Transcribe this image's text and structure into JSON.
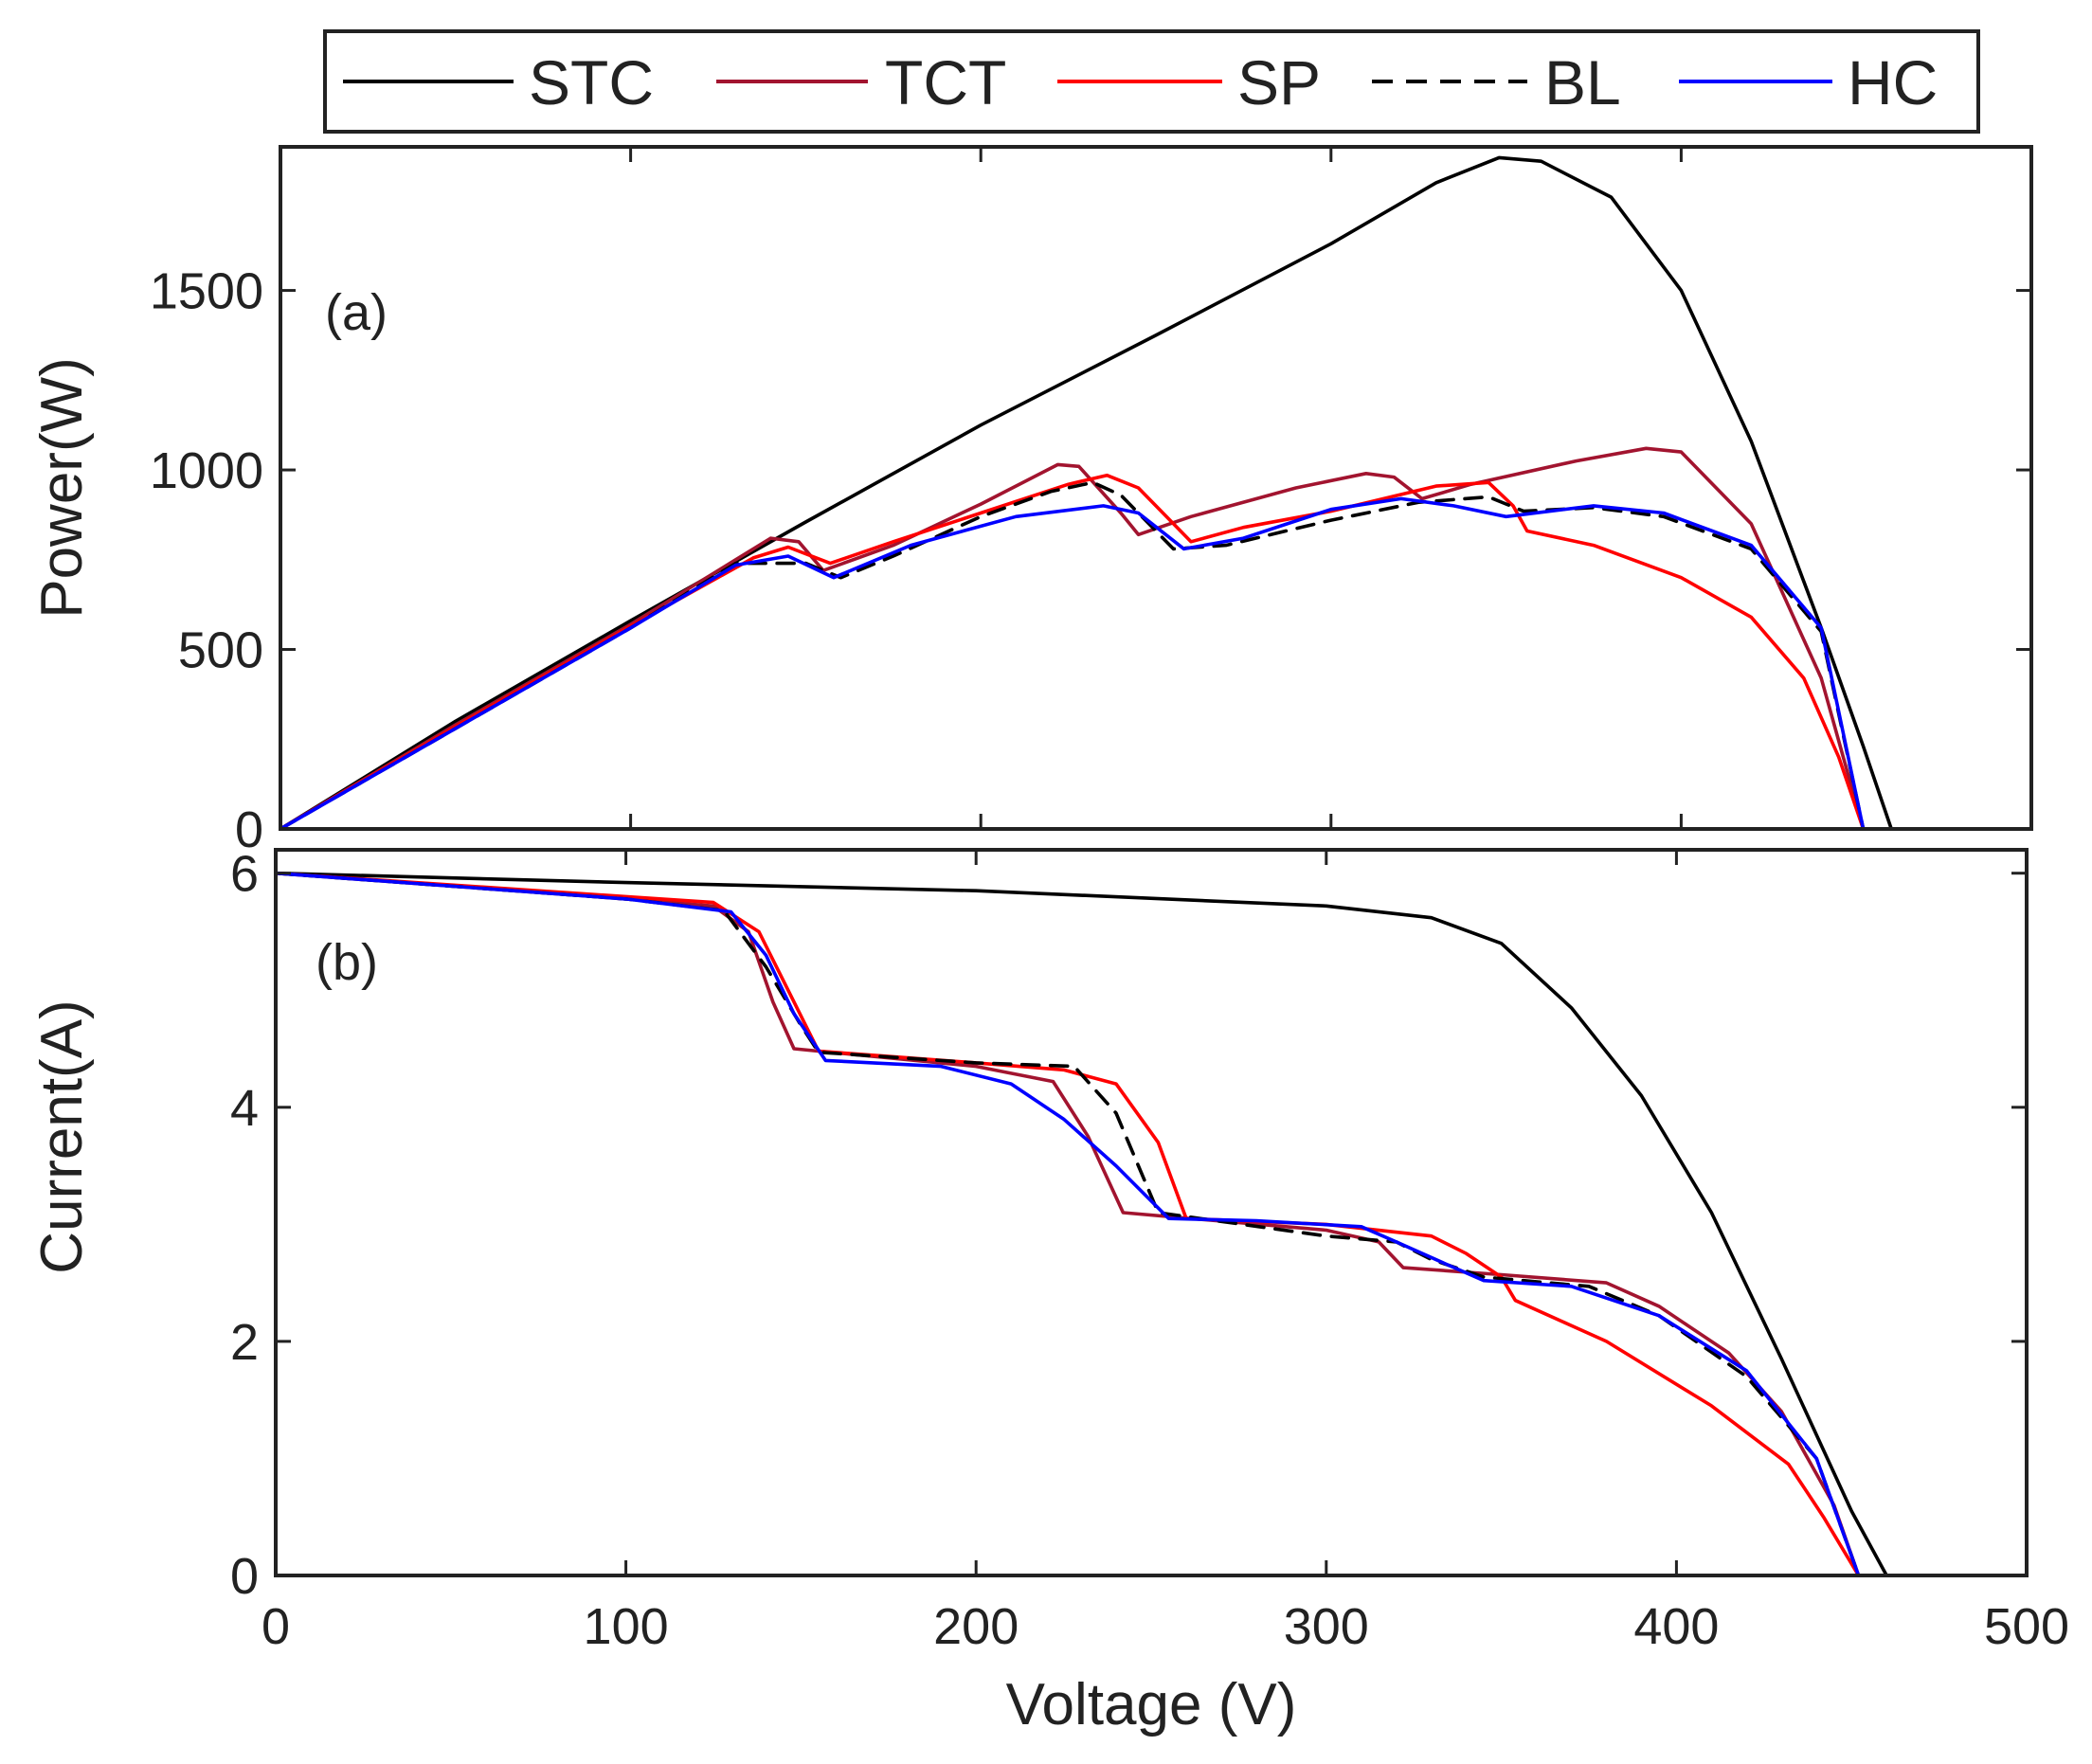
{
  "chart_data": [
    {
      "id": "power",
      "type": "line",
      "panel_label": "(a)",
      "xlabel": "",
      "ylabel": "Power(W)",
      "xlim": [
        0,
        500
      ],
      "ylim": [
        0,
        1900
      ],
      "xticks": [],
      "yticks": [
        0,
        500,
        1000,
        1500
      ],
      "series": [
        {
          "name": "STC",
          "color": "#000000",
          "dash": "solid",
          "points": [
            [
              0,
              0
            ],
            [
              50,
              300
            ],
            [
              100,
              580
            ],
            [
              150,
              855
            ],
            [
              200,
              1125
            ],
            [
              250,
              1375
            ],
            [
              300,
              1630
            ],
            [
              330,
              1800
            ],
            [
              348,
              1870
            ],
            [
              360,
              1860
            ],
            [
              380,
              1760
            ],
            [
              400,
              1500
            ],
            [
              420,
              1080
            ],
            [
              440,
              560
            ],
            [
              452,
              230
            ],
            [
              460,
              0
            ]
          ]
        },
        {
          "name": "TCT",
          "color": "#A2142F",
          "dash": "solid",
          "points": [
            [
              0,
              0
            ],
            [
              50,
              290
            ],
            [
              100,
              570
            ],
            [
              130,
              750
            ],
            [
              140,
              810
            ],
            [
              148,
              800
            ],
            [
              155,
              720
            ],
            [
              175,
              790
            ],
            [
              200,
              905
            ],
            [
              222,
              1015
            ],
            [
              228,
              1010
            ],
            [
              240,
              880
            ],
            [
              245,
              820
            ],
            [
              260,
              870
            ],
            [
              290,
              950
            ],
            [
              310,
              990
            ],
            [
              318,
              980
            ],
            [
              326,
              920
            ],
            [
              340,
              960
            ],
            [
              370,
              1025
            ],
            [
              390,
              1060
            ],
            [
              400,
              1050
            ],
            [
              420,
              850
            ],
            [
              440,
              420
            ],
            [
              452,
              0
            ]
          ]
        },
        {
          "name": "SP",
          "color": "#FF0000",
          "dash": "solid",
          "points": [
            [
              0,
              0
            ],
            [
              50,
              285
            ],
            [
              100,
              565
            ],
            [
              135,
              755
            ],
            [
              145,
              785
            ],
            [
              157,
              740
            ],
            [
              175,
              800
            ],
            [
              200,
              880
            ],
            [
              225,
              960
            ],
            [
              236,
              985
            ],
            [
              245,
              950
            ],
            [
              260,
              800
            ],
            [
              275,
              840
            ],
            [
              300,
              885
            ],
            [
              330,
              955
            ],
            [
              345,
              965
            ],
            [
              352,
              900
            ],
            [
              356,
              830
            ],
            [
              375,
              790
            ],
            [
              400,
              700
            ],
            [
              420,
              590
            ],
            [
              435,
              420
            ],
            [
              445,
              200
            ],
            [
              452,
              0
            ]
          ]
        },
        {
          "name": "BL",
          "color": "#000000",
          "dash": "dashed",
          "points": [
            [
              0,
              0
            ],
            [
              50,
              280
            ],
            [
              100,
              560
            ],
            [
              130,
              740
            ],
            [
              150,
              740
            ],
            [
              160,
              700
            ],
            [
              175,
              760
            ],
            [
              200,
              870
            ],
            [
              220,
              940
            ],
            [
              232,
              965
            ],
            [
              240,
              930
            ],
            [
              255,
              780
            ],
            [
              270,
              790
            ],
            [
              300,
              860
            ],
            [
              325,
              910
            ],
            [
              345,
              925
            ],
            [
              355,
              885
            ],
            [
              375,
              895
            ],
            [
              395,
              870
            ],
            [
              420,
              780
            ],
            [
              440,
              550
            ],
            [
              452,
              0
            ]
          ]
        },
        {
          "name": "HC",
          "color": "#0000FF",
          "dash": "solid",
          "points": [
            [
              0,
              0
            ],
            [
              50,
              280
            ],
            [
              100,
              560
            ],
            [
              130,
              735
            ],
            [
              145,
              760
            ],
            [
              158,
              700
            ],
            [
              180,
              790
            ],
            [
              210,
              870
            ],
            [
              235,
              900
            ],
            [
              245,
              880
            ],
            [
              258,
              780
            ],
            [
              275,
              810
            ],
            [
              300,
              890
            ],
            [
              320,
              920
            ],
            [
              335,
              900
            ],
            [
              350,
              870
            ],
            [
              375,
              900
            ],
            [
              395,
              880
            ],
            [
              420,
              790
            ],
            [
              440,
              560
            ],
            [
              452,
              0
            ]
          ]
        }
      ]
    },
    {
      "id": "current",
      "type": "line",
      "panel_label": "(b)",
      "xlabel": "Voltage (V)",
      "ylabel": "Current(A)",
      "xlim": [
        0,
        500
      ],
      "ylim": [
        0,
        6.2
      ],
      "xticks": [
        0,
        100,
        200,
        300,
        400,
        500
      ],
      "yticks": [
        0,
        2,
        4,
        6
      ],
      "series": [
        {
          "name": "STC",
          "color": "#000000",
          "dash": "solid",
          "points": [
            [
              0,
              6.0
            ],
            [
              100,
              5.92
            ],
            [
              200,
              5.85
            ],
            [
              300,
              5.72
            ],
            [
              330,
              5.62
            ],
            [
              350,
              5.4
            ],
            [
              370,
              4.85
            ],
            [
              390,
              4.1
            ],
            [
              410,
              3.1
            ],
            [
              430,
              1.85
            ],
            [
              450,
              0.55
            ],
            [
              460,
              0
            ]
          ]
        },
        {
          "name": "TCT",
          "color": "#A2142F",
          "dash": "solid",
          "points": [
            [
              0,
              6.0
            ],
            [
              100,
              5.78
            ],
            [
              125,
              5.72
            ],
            [
              135,
              5.5
            ],
            [
              142,
              4.9
            ],
            [
              148,
              4.5
            ],
            [
              200,
              4.35
            ],
            [
              222,
              4.22
            ],
            [
              232,
              3.75
            ],
            [
              242,
              3.1
            ],
            [
              300,
              2.95
            ],
            [
              315,
              2.85
            ],
            [
              322,
              2.63
            ],
            [
              350,
              2.57
            ],
            [
              380,
              2.5
            ],
            [
              395,
              2.3
            ],
            [
              415,
              1.9
            ],
            [
              430,
              1.4
            ],
            [
              445,
              0.6
            ],
            [
              452,
              0
            ]
          ]
        },
        {
          "name": "SP",
          "color": "#FF0000",
          "dash": "solid",
          "points": [
            [
              0,
              6.0
            ],
            [
              100,
              5.8
            ],
            [
              125,
              5.75
            ],
            [
              138,
              5.5
            ],
            [
              148,
              4.9
            ],
            [
              155,
              4.48
            ],
            [
              200,
              4.38
            ],
            [
              225,
              4.32
            ],
            [
              240,
              4.2
            ],
            [
              252,
              3.7
            ],
            [
              260,
              3.05
            ],
            [
              300,
              3.0
            ],
            [
              330,
              2.9
            ],
            [
              340,
              2.75
            ],
            [
              350,
              2.55
            ],
            [
              354,
              2.35
            ],
            [
              380,
              2.0
            ],
            [
              410,
              1.45
            ],
            [
              432,
              0.95
            ],
            [
              442,
              0.5
            ],
            [
              452,
              0
            ]
          ]
        },
        {
          "name": "BL",
          "color": "#000000",
          "dash": "dashed",
          "points": [
            [
              0,
              6.0
            ],
            [
              100,
              5.78
            ],
            [
              128,
              5.68
            ],
            [
              140,
              5.2
            ],
            [
              150,
              4.7
            ],
            [
              155,
              4.47
            ],
            [
              200,
              4.38
            ],
            [
              228,
              4.35
            ],
            [
              240,
              3.95
            ],
            [
              252,
              3.1
            ],
            [
              300,
              2.9
            ],
            [
              320,
              2.85
            ],
            [
              330,
              2.7
            ],
            [
              345,
              2.55
            ],
            [
              375,
              2.47
            ],
            [
              395,
              2.22
            ],
            [
              420,
              1.7
            ],
            [
              440,
              1.0
            ],
            [
              452,
              0
            ]
          ]
        },
        {
          "name": "HC",
          "color": "#0000FF",
          "dash": "solid",
          "points": [
            [
              0,
              6.0
            ],
            [
              100,
              5.78
            ],
            [
              130,
              5.67
            ],
            [
              140,
              5.3
            ],
            [
              148,
              4.8
            ],
            [
              157,
              4.4
            ],
            [
              190,
              4.35
            ],
            [
              210,
              4.2
            ],
            [
              225,
              3.9
            ],
            [
              240,
              3.5
            ],
            [
              255,
              3.05
            ],
            [
              280,
              3.03
            ],
            [
              310,
              2.98
            ],
            [
              320,
              2.85
            ],
            [
              335,
              2.65
            ],
            [
              345,
              2.52
            ],
            [
              370,
              2.47
            ],
            [
              395,
              2.22
            ],
            [
              420,
              1.75
            ],
            [
              440,
              1.0
            ],
            [
              452,
              0
            ]
          ]
        }
      ]
    }
  ],
  "legend": {
    "placement": "top-center",
    "entries": [
      {
        "label": "STC",
        "color": "#000000",
        "dash": "solid"
      },
      {
        "label": "TCT",
        "color": "#A2142F",
        "dash": "solid"
      },
      {
        "label": "SP",
        "color": "#FF0000",
        "dash": "solid"
      },
      {
        "label": "BL",
        "color": "#000000",
        "dash": "dashed"
      },
      {
        "label": "HC",
        "color": "#0000FF",
        "dash": "solid"
      }
    ]
  }
}
